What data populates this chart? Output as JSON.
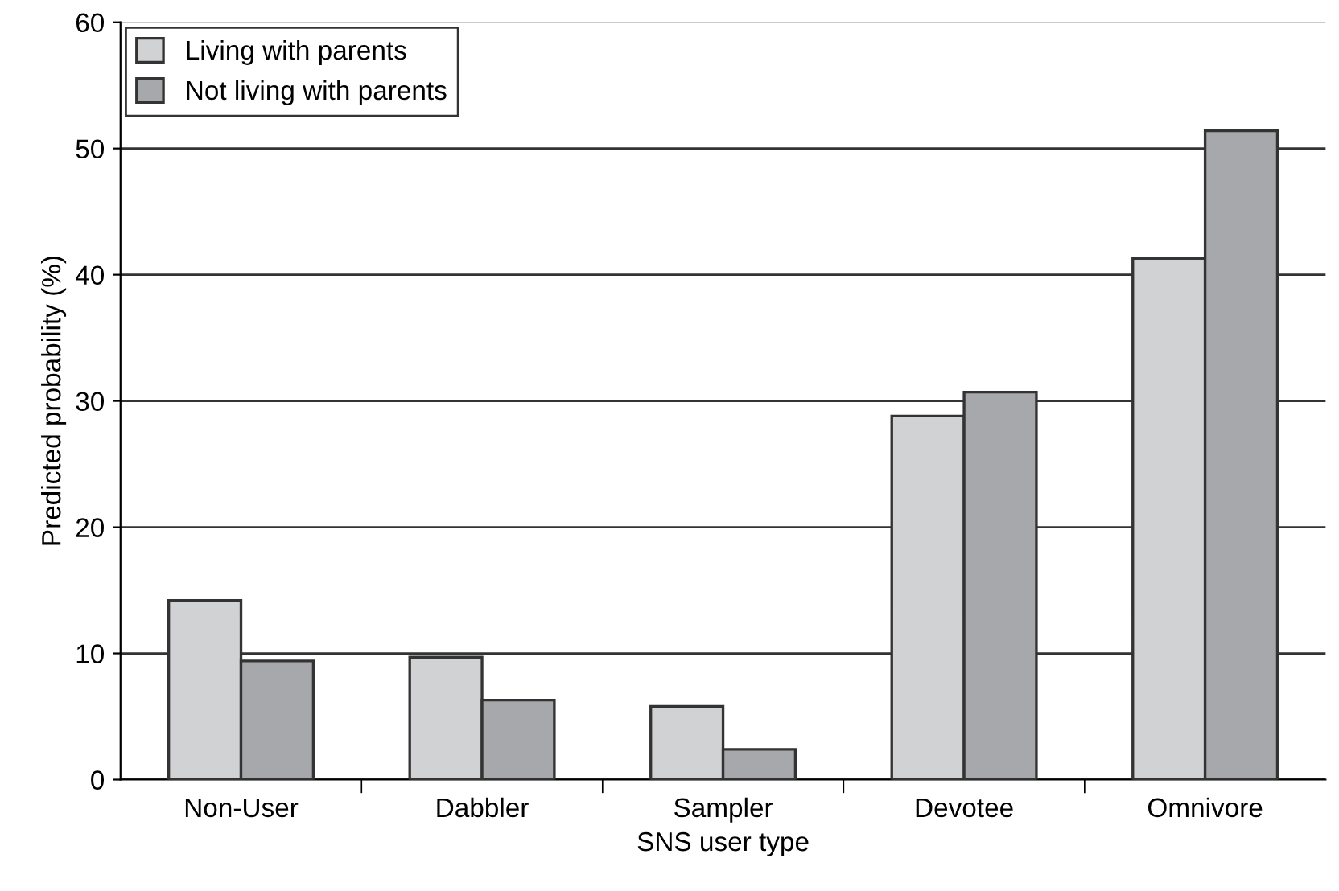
{
  "chart_data": {
    "type": "bar",
    "xlabel": "SNS user type",
    "ylabel": "Predicted probability (%)",
    "categories": [
      "Non-User",
      "Dabbler",
      "Sampler",
      "Devotee",
      "Omnivore"
    ],
    "series": [
      {
        "name": "Living with parents",
        "color": "#d1d2d4",
        "values": [
          14.2,
          9.7,
          5.8,
          28.8,
          41.3
        ]
      },
      {
        "name": "Not living with parents",
        "color": "#a7a8ab",
        "values": [
          9.4,
          6.3,
          2.4,
          30.7,
          51.4
        ]
      }
    ],
    "ylim": [
      0,
      60
    ],
    "yticks": [
      0,
      10,
      20,
      30,
      40,
      50,
      60
    ],
    "grid": "y",
    "legend": "top left"
  }
}
